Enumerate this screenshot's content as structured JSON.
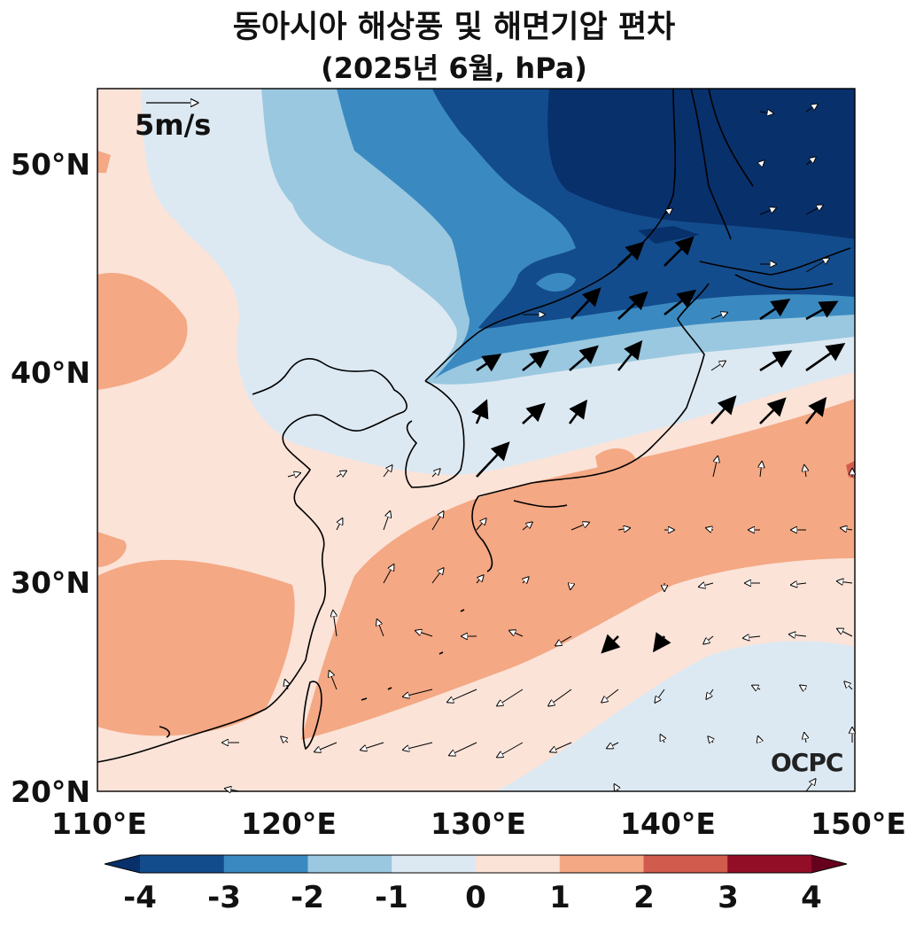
{
  "title": "동아시아 해상풍 및 해면기압 편차",
  "subtitle": "(2025년 6월, hPa)",
  "map": {
    "lon_range": [
      110,
      150
    ],
    "lat_range": [
      20,
      53.8
    ],
    "lon_ticks": [
      "110°E",
      "120°E",
      "130°E",
      "140°E",
      "150°E"
    ],
    "lat_ticks": [
      "50°N",
      "40°N",
      "30°N",
      "20°N"
    ],
    "reference_vector_label": "5m/s",
    "credit": "OCPC"
  },
  "colorbar": {
    "labels": [
      "-4",
      "-3",
      "-2",
      "-1",
      "0",
      "1",
      "2",
      "3",
      "4"
    ],
    "colors": [
      "#134c8c",
      "#3a8ac1",
      "#9ac8e0",
      "#dde9f2",
      "#fbe3d8",
      "#f4a884",
      "#d15b4c",
      "#920e27"
    ]
  },
  "icons": [
    "wind-vector-arrow",
    "coastline"
  ]
}
